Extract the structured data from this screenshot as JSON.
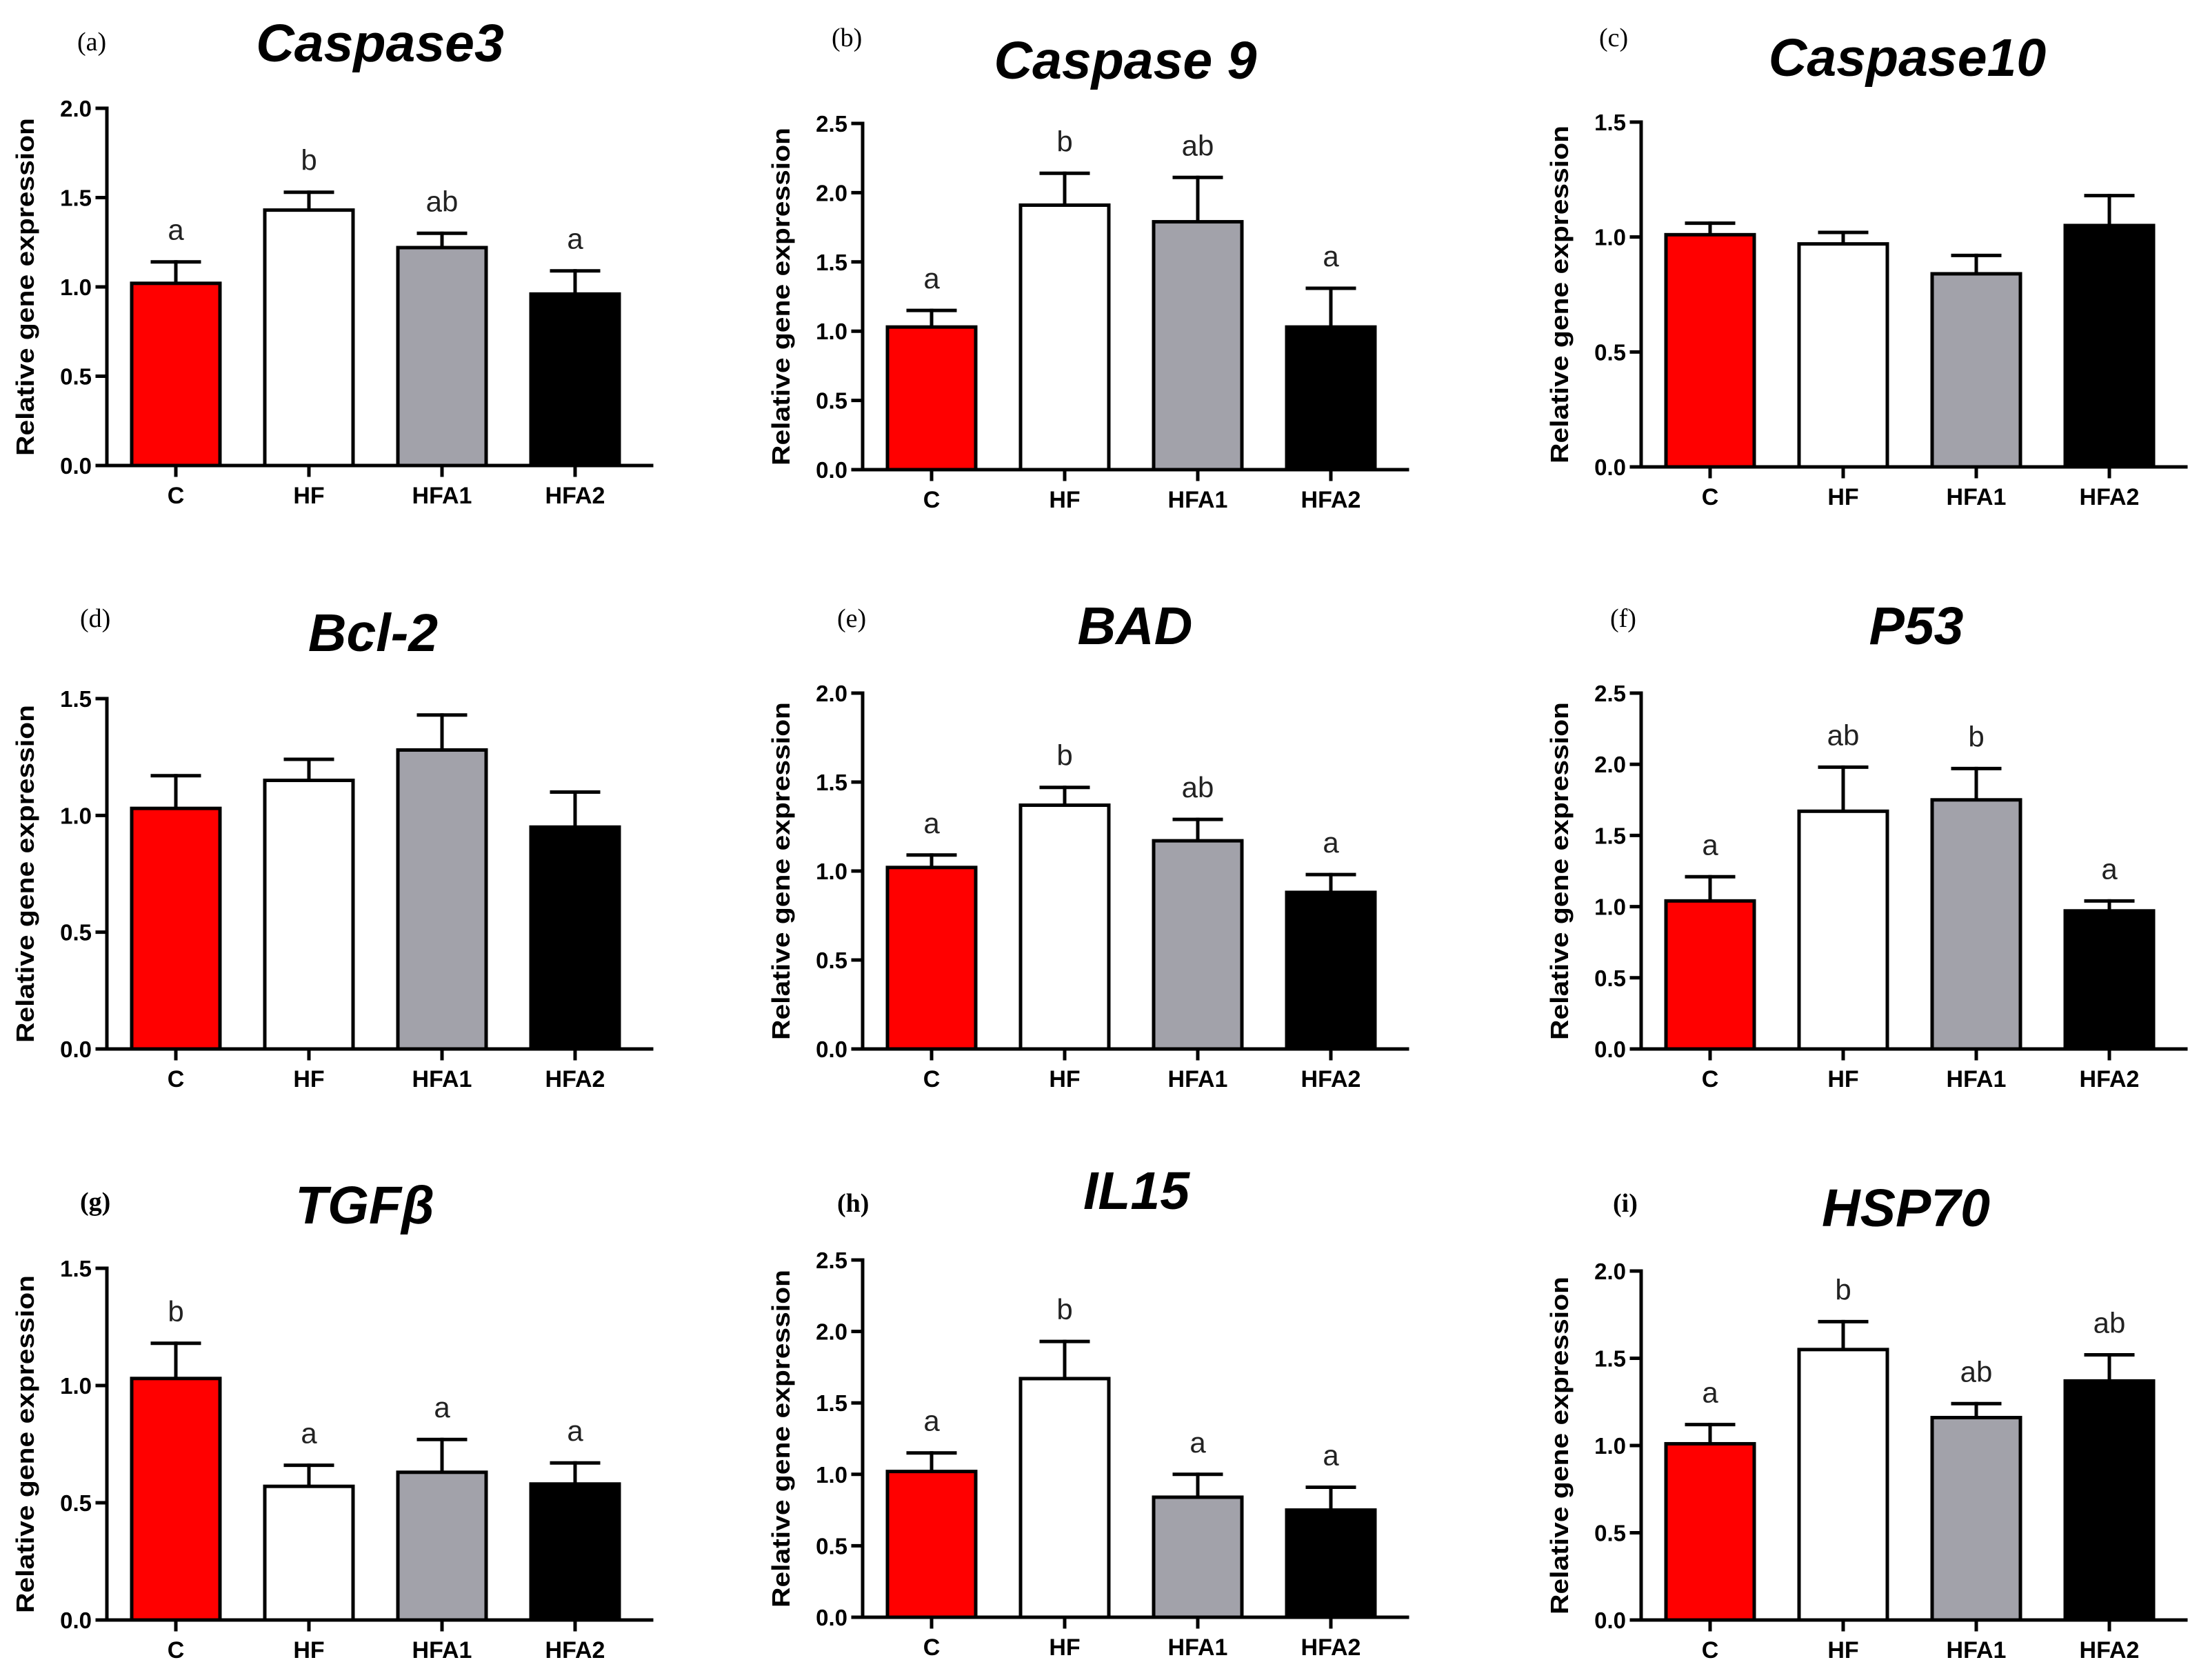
{
  "colors": {
    "C": "#ff0000",
    "HF": "#ffffff",
    "HFA1": "#a2a2aa",
    "HFA2": "#000000",
    "outline": "#000000",
    "letters": "#222222"
  },
  "chart_data": [
    {
      "panel": "(a)",
      "type": "bar",
      "title": "Caspase3",
      "ylabel": "Relative gene expression",
      "ylim": [
        0,
        2.0
      ],
      "yticks": [
        "0.0",
        "0.5",
        "1.0",
        "1.5",
        "2.0"
      ],
      "categories": [
        "C",
        "HF",
        "HFA1",
        "HFA2"
      ],
      "values": [
        1.02,
        1.43,
        1.22,
        0.96
      ],
      "error": [
        0.12,
        0.1,
        0.08,
        0.13
      ],
      "letters": [
        "a",
        "b",
        "ab",
        "a"
      ]
    },
    {
      "panel": "(b)",
      "type": "bar",
      "title": "Caspase 9",
      "ylabel": "Relative gene expression",
      "ylim": [
        0,
        2.5
      ],
      "yticks": [
        "0.0",
        "0.5",
        "1.0",
        "1.5",
        "2.0",
        "2.5"
      ],
      "categories": [
        "C",
        "HF",
        "HFA1",
        "HFA2"
      ],
      "values": [
        1.03,
        1.91,
        1.79,
        1.03
      ],
      "error": [
        0.12,
        0.23,
        0.32,
        0.28
      ],
      "letters": [
        "a",
        "b",
        "ab",
        "a"
      ]
    },
    {
      "panel": "(c)",
      "type": "bar",
      "title": "Caspase10",
      "ylabel": "Relative gene expression",
      "ylim": [
        0,
        1.5
      ],
      "yticks": [
        "0.0",
        "0.5",
        "1.0",
        "1.5"
      ],
      "categories": [
        "C",
        "HF",
        "HFA1",
        "HFA2"
      ],
      "values": [
        1.01,
        0.97,
        0.84,
        1.05
      ],
      "error": [
        0.05,
        0.05,
        0.08,
        0.13
      ],
      "letters": []
    },
    {
      "panel": "(d)",
      "type": "bar",
      "title": "Bcl-2",
      "ylabel": "Relative gene expression",
      "ylim": [
        0,
        1.5
      ],
      "yticks": [
        "0.0",
        "0.5",
        "1.0",
        "1.5"
      ],
      "categories": [
        "C",
        "HF",
        "HFA1",
        "HFA2"
      ],
      "values": [
        1.03,
        1.15,
        1.28,
        0.95
      ],
      "error": [
        0.14,
        0.09,
        0.15,
        0.15
      ],
      "letters": []
    },
    {
      "panel": "(e)",
      "type": "bar",
      "title": "BAD",
      "ylabel": "Relative gene expression",
      "ylim": [
        0,
        2.0
      ],
      "yticks": [
        "0.0",
        "0.5",
        "1.0",
        "1.5",
        "2.0"
      ],
      "categories": [
        "C",
        "HF",
        "HFA1",
        "HFA2"
      ],
      "values": [
        1.02,
        1.37,
        1.17,
        0.88
      ],
      "error": [
        0.07,
        0.1,
        0.12,
        0.1
      ],
      "letters": [
        "a",
        "b",
        "ab",
        "a"
      ]
    },
    {
      "panel": "(f)",
      "type": "bar",
      "title": "P53",
      "ylabel": "Relative gene expression",
      "ylim": [
        0,
        2.5
      ],
      "yticks": [
        "0.0",
        "0.5",
        "1.0",
        "1.5",
        "2.0",
        "2.5"
      ],
      "categories": [
        "C",
        "HF",
        "HFA1",
        "HFA2"
      ],
      "values": [
        1.04,
        1.67,
        1.75,
        0.97
      ],
      "error": [
        0.17,
        0.31,
        0.22,
        0.07
      ],
      "letters": [
        "a",
        "ab",
        "b",
        "a"
      ]
    },
    {
      "panel": "(g)",
      "type": "bar",
      "title": "TGFβ",
      "ylabel": "Relative gene expression",
      "ylim": [
        0,
        1.5
      ],
      "yticks": [
        "0.0",
        "0.5",
        "1.0",
        "1.5"
      ],
      "categories": [
        "C",
        "HF",
        "HFA1",
        "HFA2"
      ],
      "values": [
        1.03,
        0.57,
        0.63,
        0.58
      ],
      "error": [
        0.15,
        0.09,
        0.14,
        0.09
      ],
      "letters": [
        "b",
        "a",
        "a",
        "a"
      ]
    },
    {
      "panel": "(h)",
      "type": "bar",
      "title": "IL15",
      "ylabel": "Relative gene expression",
      "ylim": [
        0,
        2.5
      ],
      "yticks": [
        "0.0",
        "0.5",
        "1.0",
        "1.5",
        "2.0",
        "2.5"
      ],
      "categories": [
        "C",
        "HF",
        "HFA1",
        "HFA2"
      ],
      "values": [
        1.02,
        1.67,
        0.84,
        0.75
      ],
      "error": [
        0.13,
        0.26,
        0.16,
        0.16
      ],
      "letters": [
        "a",
        "b",
        "a",
        "a"
      ]
    },
    {
      "panel": "(i)",
      "type": "bar",
      "title": "HSP70",
      "ylabel": "Relative gene expression",
      "ylim": [
        0,
        2.0
      ],
      "yticks": [
        "0.0",
        "0.5",
        "1.0",
        "1.5",
        "2.0"
      ],
      "categories": [
        "C",
        "HF",
        "HFA1",
        "HFA2"
      ],
      "values": [
        1.01,
        1.55,
        1.16,
        1.37
      ],
      "error": [
        0.11,
        0.16,
        0.08,
        0.15
      ],
      "letters": [
        "a",
        "b",
        "ab",
        "ab"
      ]
    }
  ]
}
